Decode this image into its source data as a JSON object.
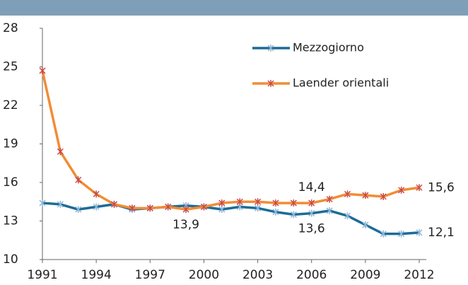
{
  "chart_data": {
    "type": "line",
    "x": [
      1991,
      1992,
      1993,
      1994,
      1995,
      1996,
      1997,
      1998,
      1999,
      2000,
      2001,
      2002,
      2003,
      2004,
      2005,
      2006,
      2007,
      2008,
      2009,
      2010,
      2011,
      2012
    ],
    "xlim": [
      1991,
      2012
    ],
    "xticks": [
      1991,
      1994,
      1997,
      2000,
      2003,
      2006,
      2009,
      2012
    ],
    "ylim": [
      10,
      28
    ],
    "yticks": [
      10,
      13,
      16,
      19,
      22,
      25,
      28
    ],
    "legend": "top-right",
    "series": [
      {
        "name": "Mezzogiorno",
        "color": "#1c6c97",
        "marker_color": "#8fb7d8",
        "values": [
          14.4,
          14.3,
          13.9,
          14.1,
          14.3,
          13.9,
          14.0,
          14.1,
          14.2,
          14.1,
          13.9,
          14.1,
          14.0,
          13.7,
          13.5,
          13.6,
          13.8,
          13.4,
          12.7,
          12.0,
          12.0,
          12.1
        ],
        "value_labels": [
          null,
          null,
          null,
          null,
          null,
          null,
          null,
          null,
          null,
          null,
          null,
          null,
          null,
          null,
          null,
          "13,6",
          null,
          null,
          null,
          null,
          null,
          "12,1"
        ]
      },
      {
        "name": "Laender orientali",
        "color": "#f28c34",
        "marker_color": "#c84a4a",
        "values": [
          24.7,
          18.4,
          16.2,
          15.1,
          14.3,
          14.0,
          14.0,
          14.1,
          13.9,
          14.1,
          14.4,
          14.5,
          14.5,
          14.4,
          14.4,
          14.4,
          14.7,
          15.1,
          15.0,
          14.9,
          15.4,
          15.6
        ],
        "value_labels": [
          null,
          null,
          null,
          null,
          null,
          null,
          null,
          null,
          "13,9",
          null,
          null,
          null,
          null,
          null,
          null,
          "14,4",
          null,
          null,
          null,
          null,
          null,
          "15,6"
        ]
      }
    ]
  }
}
